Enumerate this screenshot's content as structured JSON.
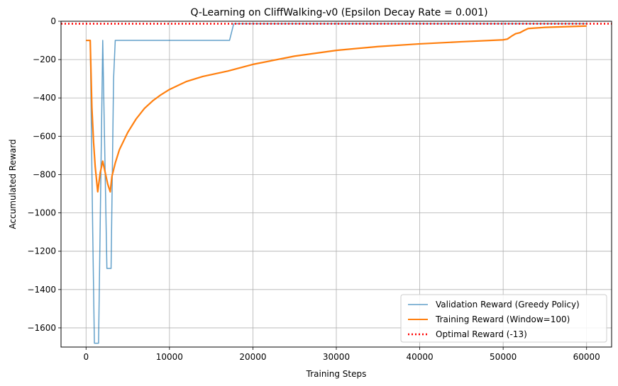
{
  "chart_data": {
    "type": "line",
    "title": "Q-Learning on CliffWalking-v0 (Epsilon Decay Rate = 0.001)",
    "xlabel": "Training Steps",
    "ylabel": "Accumulated Reward",
    "xlim": [
      -3000,
      63000
    ],
    "ylim": [
      -1700,
      0
    ],
    "xticks": [
      0,
      10000,
      20000,
      30000,
      40000,
      50000,
      60000
    ],
    "yticks": [
      0,
      -200,
      -400,
      -600,
      -800,
      -1000,
      -1200,
      -1400,
      -1600
    ],
    "xtick_labels": [
      "0",
      "10000",
      "20000",
      "30000",
      "40000",
      "50000",
      "60000"
    ],
    "ytick_labels": [
      "0",
      "−200",
      "−400",
      "−600",
      "−800",
      "−1000",
      "−1200",
      "−1400",
      "−1600"
    ],
    "grid": true,
    "legend_position": "lower-right",
    "series": [
      {
        "name": "Validation Reward (Greedy Policy)",
        "color": "#1f77b4",
        "x": [
          0,
          500,
          800,
          1000,
          1500,
          2000,
          2500,
          3000,
          3300,
          3500,
          17200,
          17700,
          60000
        ],
        "y": [
          -100,
          -100,
          -1100,
          -1680,
          -1680,
          -100,
          -1290,
          -1290,
          -300,
          -100,
          -100,
          -13,
          -13
        ]
      },
      {
        "name": "Training Reward (Window=100)",
        "color": "#ff7f0e",
        "x": [
          0,
          500,
          700,
          900,
          1100,
          1400,
          1700,
          2000,
          2300,
          2600,
          2900,
          3100,
          3500,
          4000,
          5000,
          6000,
          7000,
          8000,
          9000,
          10000,
          12000,
          14000,
          17000,
          20000,
          25000,
          30000,
          35000,
          40000,
          45000,
          50000,
          50500,
          51000,
          51500,
          52000,
          52500,
          53000,
          55000,
          60000
        ],
        "y": [
          -100,
          -100,
          -450,
          -630,
          -760,
          -890,
          -790,
          -730,
          -790,
          -850,
          -890,
          -810,
          -740,
          -670,
          -580,
          -510,
          -455,
          -415,
          -383,
          -356,
          -315,
          -288,
          -260,
          -225,
          -182,
          -152,
          -132,
          -118,
          -107,
          -97,
          -93,
          -78,
          -65,
          -60,
          -48,
          -38,
          -32,
          -25
        ]
      },
      {
        "name": "Optimal Reward (-13)",
        "color": "#ff0000",
        "style": "dotted",
        "y_constant": -13
      }
    ]
  }
}
